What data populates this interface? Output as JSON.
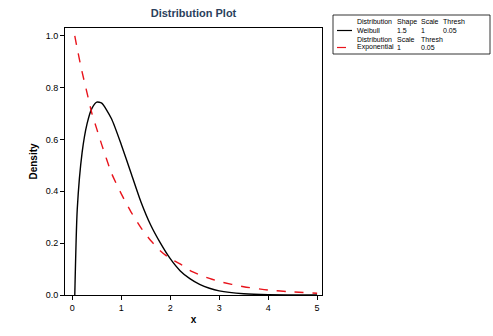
{
  "chart_data": {
    "type": "line",
    "title": "Distribution Plot",
    "x_label": "x",
    "y_label": "Density",
    "legend": "right",
    "legend_header": "Distribution",
    "grid": false,
    "xlim": [
      -0.15,
      5.1
    ],
    "ylim": [
      0,
      1.03
    ],
    "xticks": [
      0,
      1,
      2,
      3,
      4,
      5
    ],
    "yticks": [
      {
        "value": 0,
        "label": "0.0"
      },
      {
        "value": 0.2,
        "label": "0.2"
      },
      {
        "value": 0.4,
        "label": "0.4"
      },
      {
        "value": 0.6,
        "label": "0.6"
      },
      {
        "value": 0.8,
        "label": "0.8"
      },
      {
        "value": 1.0,
        "label": "1.0"
      }
    ],
    "series": [
      {
        "name": "Weibull",
        "color": "#000000",
        "line_style": "solid",
        "params": [
          {
            "label": "Shape",
            "value": 1.5
          },
          {
            "label": "Scale",
            "value": 1
          },
          {
            "label": "Thresh",
            "value": 0.05
          }
        ],
        "x": [
          0.05,
          0.1,
          0.2,
          0.3,
          0.4,
          0.5,
          0.6,
          0.8,
          1.0,
          1.2,
          1.4,
          1.6,
          1.8,
          2.0,
          2.2,
          2.4,
          2.6,
          2.8,
          3.0,
          3.5,
          4.0,
          4.5,
          5.0
        ],
        "values": [
          0,
          0.33,
          0.55,
          0.66,
          0.72,
          0.744,
          0.74,
          0.68,
          0.58,
          0.47,
          0.36,
          0.27,
          0.2,
          0.14,
          0.094,
          0.063,
          0.041,
          0.026,
          0.016,
          0.005,
          0.001,
          0.0003,
          0
        ]
      },
      {
        "name": "Exponential",
        "color": "#e8141c",
        "line_style": "dash",
        "params": [
          {
            "label": "Scale",
            "value": 1
          },
          {
            "label": "Thresh",
            "value": 0.05
          }
        ],
        "x": [
          0.05,
          0.1,
          0.2,
          0.3,
          0.4,
          0.5,
          0.6,
          0.8,
          1.0,
          1.2,
          1.4,
          1.6,
          1.8,
          2.0,
          2.2,
          2.4,
          2.6,
          2.8,
          3.0,
          3.5,
          4.0,
          4.5,
          5.0
        ],
        "values": [
          1.0,
          0.95,
          0.86,
          0.78,
          0.7,
          0.64,
          0.58,
          0.47,
          0.39,
          0.32,
          0.26,
          0.21,
          0.17,
          0.14,
          0.12,
          0.095,
          0.078,
          0.064,
          0.052,
          0.032,
          0.019,
          0.012,
          0.007
        ]
      }
    ]
  }
}
